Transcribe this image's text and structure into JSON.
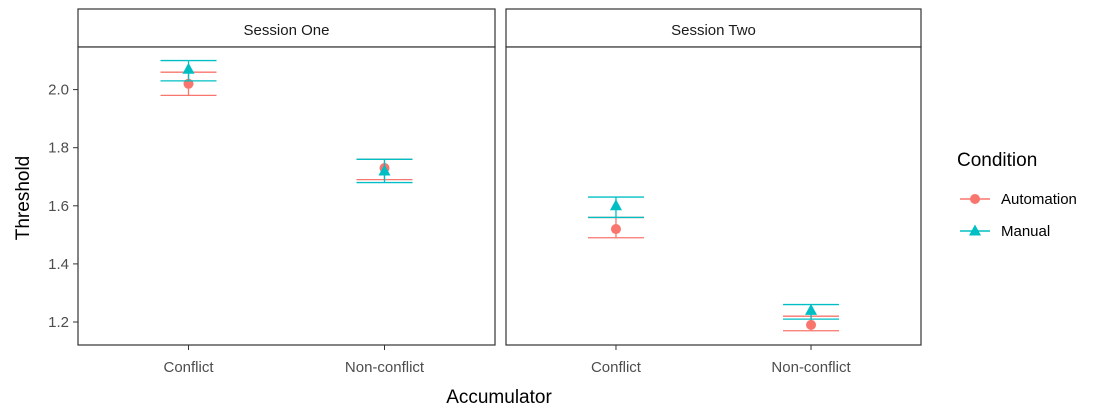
{
  "chart_data": {
    "type": "scatter",
    "subtype": "point-with-errorbars, faceted",
    "xlabel": "Accumulator",
    "ylabel": "Threshold",
    "ylim": [
      1.12,
      2.16
    ],
    "yticks": [
      "1.2",
      "1.4",
      "1.6",
      "1.8",
      "2.0"
    ],
    "categories": [
      "Conflict",
      "Non-conflict"
    ],
    "legend": {
      "title": "Condition",
      "placement": "right",
      "entries": [
        {
          "name": "Automation",
          "color": "#F8766D",
          "shape": "circle"
        },
        {
          "name": "Manual",
          "color": "#00BFC4",
          "shape": "triangle"
        }
      ]
    },
    "grid": false,
    "facets": [
      {
        "label": "Session One",
        "series": [
          {
            "name": "Automation",
            "values": [
              2.02,
              1.73
            ],
            "lower": [
              1.98,
              1.69
            ],
            "upper": [
              2.06,
              1.76
            ]
          },
          {
            "name": "Manual",
            "values": [
              2.07,
              1.72
            ],
            "lower": [
              2.03,
              1.68
            ],
            "upper": [
              2.1,
              1.76
            ]
          }
        ]
      },
      {
        "label": "Session Two",
        "series": [
          {
            "name": "Automation",
            "values": [
              1.52,
              1.19
            ],
            "lower": [
              1.49,
              1.17
            ],
            "upper": [
              1.56,
              1.22
            ]
          },
          {
            "name": "Manual",
            "values": [
              1.6,
              1.24
            ],
            "lower": [
              1.56,
              1.21
            ],
            "upper": [
              1.63,
              1.26
            ]
          }
        ]
      }
    ]
  }
}
